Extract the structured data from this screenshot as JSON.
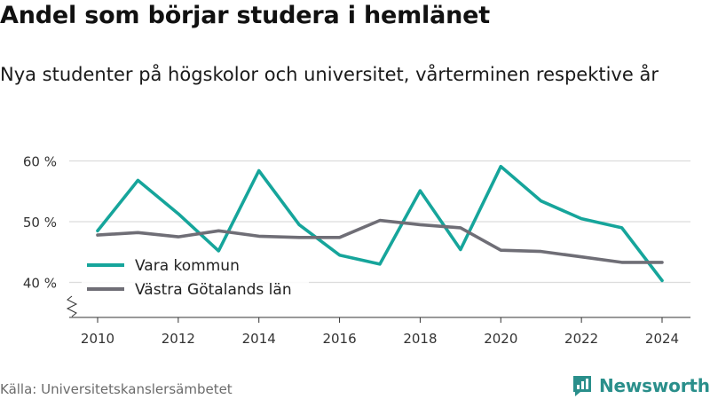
{
  "title": "Andel som börjar studera i hemlänet",
  "subtitle": "Nya studenter på högskolor och universitet, vårterminen respektive år",
  "source": "Källa: Universitetskanslersämbetet",
  "brand": "Newsworthy",
  "chart_data": {
    "type": "line",
    "x": [
      2010,
      2011,
      2012,
      2013,
      2014,
      2015,
      2016,
      2017,
      2018,
      2019,
      2020,
      2021,
      2022,
      2023,
      2024
    ],
    "x_ticks": [
      2010,
      2012,
      2014,
      2016,
      2018,
      2020,
      2022,
      2024
    ],
    "x_tick_labels": [
      "2010",
      "2012",
      "2014",
      "2016",
      "2018",
      "2020",
      "2022",
      "2024"
    ],
    "y_ticks": [
      40,
      50,
      60
    ],
    "y_tick_labels": [
      "40 %",
      "50 %",
      "60 %"
    ],
    "ylim": [
      35,
      62
    ],
    "axis_break": true,
    "grid": "horizontal",
    "legend_position": "bottom-left",
    "series": [
      {
        "name": "Vara kommun",
        "color": "#16a59b",
        "values": [
          48.5,
          56.8,
          51.3,
          45.2,
          58.4,
          49.5,
          44.5,
          43.0,
          55.1,
          45.4,
          59.1,
          53.4,
          50.5,
          49.0,
          40.3
        ]
      },
      {
        "name": "Västra Götalands län",
        "color": "#6f6e76",
        "values": [
          47.8,
          48.2,
          47.5,
          48.5,
          47.6,
          47.4,
          47.4,
          50.2,
          49.5,
          49.0,
          45.3,
          45.1,
          44.2,
          43.3,
          43.3
        ]
      }
    ]
  }
}
